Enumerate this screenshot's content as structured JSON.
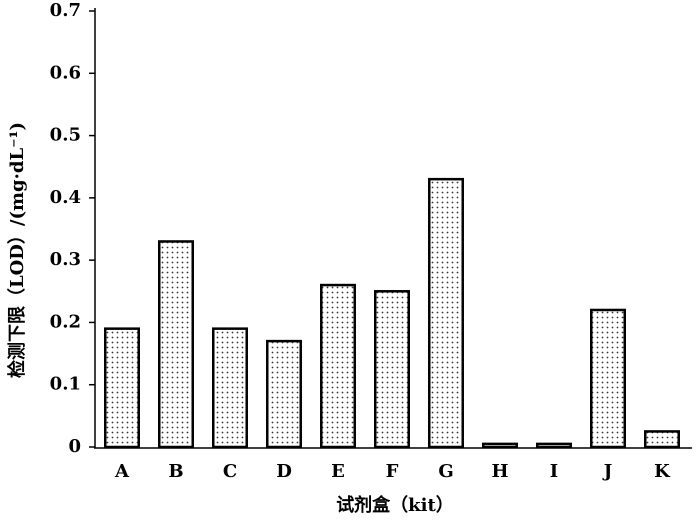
{
  "chart_data": {
    "type": "bar",
    "x_label": "试剂盒（kit）",
    "y_label": "检测下限（LOD）/(mg·dL⁻¹)",
    "categories": [
      "A",
      "B",
      "C",
      "D",
      "E",
      "F",
      "G",
      "H",
      "I",
      "J",
      "K"
    ],
    "values": [
      0.19,
      0.33,
      0.19,
      0.17,
      0.26,
      0.25,
      0.43,
      0.005,
      0.005,
      0.22,
      0.025
    ],
    "color": "#000000",
    "ylim": [
      0,
      0.7
    ],
    "yticks": [
      0,
      0.1,
      0.2,
      0.3,
      0.4,
      0.5,
      0.6,
      0.7
    ],
    "grid": false
  }
}
